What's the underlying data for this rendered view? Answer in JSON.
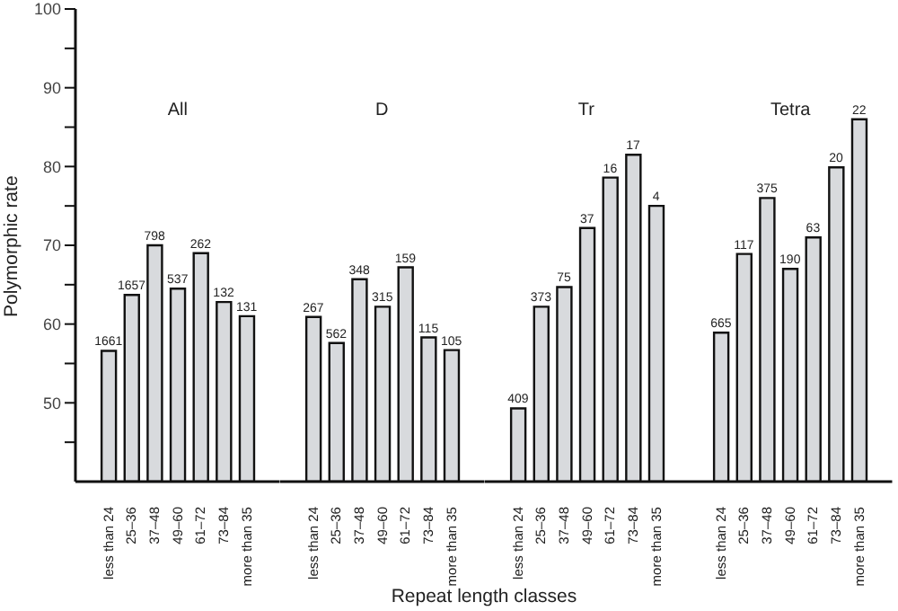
{
  "chart_data": [
    {
      "type": "bar",
      "title": "All",
      "ylabel": "Polymorphic rate",
      "categories": [
        "less than 24",
        "25–36",
        "37–48",
        "49–60",
        "61–72",
        "73–84",
        "more than 35"
      ],
      "values": [
        56.6,
        63.7,
        70.0,
        64.5,
        69.0,
        62.8,
        61.0
      ],
      "color": "#d8dadd",
      "annotations": [
        {
          "text": "1661",
          "x": "less than 24",
          "y": 56.6
        },
        {
          "text": "1657",
          "x": "25–36",
          "y": 63.7
        },
        {
          "text": "798",
          "x": "37–48",
          "y": 70.0
        },
        {
          "text": "537",
          "x": "49–60",
          "y": 64.5
        },
        {
          "text": "262",
          "x": "61–72",
          "y": 69.0
        },
        {
          "text": "132",
          "x": "73–84",
          "y": 62.8
        },
        {
          "text": "131",
          "x": "more than 35",
          "y": 61.0
        }
      ],
      "ylim": [
        40,
        100
      ],
      "yticks": [
        {
          "value": 45,
          "label": null
        },
        50,
        {
          "value": 55,
          "label": null
        },
        60,
        {
          "value": 65,
          "label": null
        },
        70,
        {
          "value": 75,
          "label": null
        },
        80,
        {
          "value": 85,
          "label": null
        },
        90,
        {
          "value": 95,
          "label": null
        },
        100
      ]
    },
    {
      "type": "bar",
      "title": "D",
      "xlabel": "Repeat length classes",
      "categories": [
        "less than 24",
        "25–36",
        "37–48",
        "49–60",
        "61–72",
        "73–84",
        "more than 35"
      ],
      "values": [
        60.9,
        57.6,
        65.7,
        62.2,
        67.2,
        58.3,
        56.7
      ],
      "color": "#d8dadd",
      "annotations": [
        {
          "text": "267",
          "x": "less than 24",
          "y": 60.9
        },
        {
          "text": "562",
          "x": "25–36",
          "y": 57.6
        },
        {
          "text": "348",
          "x": "37–48",
          "y": 65.7
        },
        {
          "text": "315",
          "x": "49–60",
          "y": 62.2
        },
        {
          "text": "159",
          "x": "61–72",
          "y": 67.2
        },
        {
          "text": "115",
          "x": "73–84",
          "y": 58.3
        },
        {
          "text": "105",
          "x": "more than 35",
          "y": 56.7
        }
      ],
      "ylim": [
        40,
        100
      ],
      "tick_labels": "x"
    },
    {
      "type": "bar",
      "title": "Tr",
      "categories": [
        "less than 24",
        "25–36",
        "37–48",
        "49–60",
        "61–72",
        "73–84",
        "more than 35"
      ],
      "values": [
        49.3,
        62.2,
        64.7,
        72.2,
        78.6,
        81.5,
        75.0
      ],
      "color": "#d8dadd",
      "annotations": [
        {
          "text": "409",
          "x": "less than 24",
          "y": 49.3
        },
        {
          "text": "373",
          "x": "25–36",
          "y": 62.2
        },
        {
          "text": "75",
          "x": "37–48",
          "y": 64.7
        },
        {
          "text": "37",
          "x": "49–60",
          "y": 72.2
        },
        {
          "text": "16",
          "x": "61–72",
          "y": 78.6
        },
        {
          "text": "17",
          "x": "73–84",
          "y": 81.5
        },
        {
          "text": "4",
          "x": "more than 35",
          "y": 75.0
        }
      ],
      "ylim": [
        40,
        100
      ],
      "tick_labels": "x"
    },
    {
      "type": "bar",
      "title": "Tetra",
      "categories": [
        "less than 24",
        "25–36",
        "37–48",
        "49–60",
        "61–72",
        "73–84",
        "more than 35"
      ],
      "values": [
        58.9,
        68.9,
        76.0,
        67.0,
        71.0,
        79.9,
        86.0
      ],
      "color": "#d8dadd",
      "annotations": [
        {
          "text": "665",
          "x": "less than 24",
          "y": 58.9
        },
        {
          "text": "117",
          "x": "25–36",
          "y": 68.9
        },
        {
          "text": "375",
          "x": "37–48",
          "y": 76.0
        },
        {
          "text": "190",
          "x": "49–60",
          "y": 67.0
        },
        {
          "text": "63",
          "x": "61–72",
          "y": 71.0
        },
        {
          "text": "20",
          "x": "73–84",
          "y": 79.9
        },
        {
          "text": "22",
          "x": "more than 35",
          "y": 86.0
        }
      ],
      "ylim": [
        40,
        100
      ],
      "tick_labels": "x"
    }
  ]
}
